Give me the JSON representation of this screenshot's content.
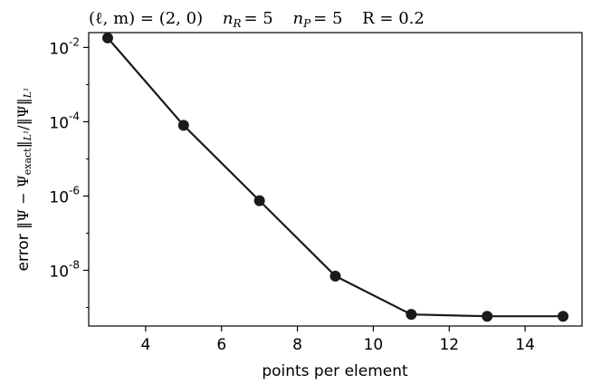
{
  "chart_data": {
    "type": "line",
    "title": "(ℓ, m) = (2, 0)   n_R = 5   n_P = 5   R = 0.2",
    "title_parts": {
      "lm": "(ℓ, m) = (2, 0)",
      "nR": "= 5",
      "nP": "= 5",
      "R": "R = 0.2"
    },
    "xlabel": "points per element",
    "ylabel": "error ‖Ψ − Ψexact‖L¹ / ‖Ψ‖L¹",
    "ylabel_parts": {
      "prefix": "error ",
      "a": "‖Ψ − Ψ",
      "sub_exact": "exact",
      "b": "‖",
      "sub_l1a": "L¹",
      "c": "/‖Ψ‖",
      "sub_l1b": "L¹"
    },
    "x": [
      3,
      5,
      7,
      9,
      11,
      13,
      15
    ],
    "y": [
      0.018,
      8e-05,
      7.5e-07,
      7e-09,
      6.5e-10,
      5.8e-10,
      5.8e-10
    ],
    "xlim": [
      2.5,
      15.5
    ],
    "ylim_log10": [
      -9.5,
      -1.6
    ],
    "yscale": "log",
    "xticks": [
      4,
      6,
      8,
      10,
      12,
      14
    ],
    "yticks": [
      {
        "exp": -2,
        "base": "10",
        "sup": "-2"
      },
      {
        "exp": -4,
        "base": "10",
        "sup": "-4"
      },
      {
        "exp": -6,
        "base": "10",
        "sup": "-6"
      },
      {
        "exp": -8,
        "base": "10",
        "sup": "-8"
      }
    ],
    "line_color": "#1a1a1a",
    "marker_color": "#1a1a1a",
    "grid": false,
    "legend": "none"
  }
}
